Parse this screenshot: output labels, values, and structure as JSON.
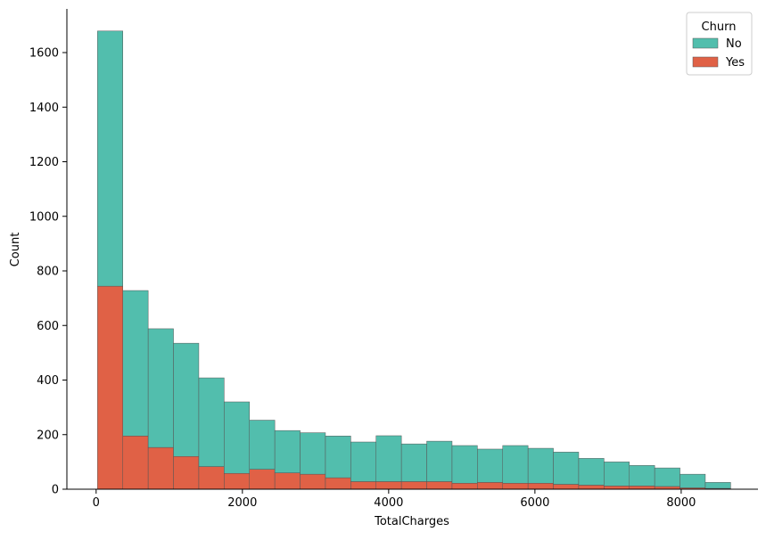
{
  "chart_data": {
    "type": "bar",
    "subtype": "stacked-histogram",
    "title": "",
    "xlabel": "TotalCharges",
    "ylabel": "Count",
    "xlim": [
      -400,
      9050
    ],
    "ylim": [
      0,
      1760
    ],
    "xticks": [
      0,
      2000,
      4000,
      6000,
      8000
    ],
    "yticks": [
      0,
      200,
      400,
      600,
      800,
      1000,
      1200,
      1400,
      1600,
      1800
    ],
    "grid": false,
    "legend": {
      "title": "Churn",
      "placement": "top-right"
    },
    "bin_start": 18.8,
    "bin_width": 346.3,
    "series": [
      {
        "name": "No",
        "color": "#52bead",
        "values": [
          935,
          533,
          435,
          415,
          325,
          262,
          180,
          155,
          152,
          153,
          145,
          168,
          138,
          148,
          138,
          122,
          138,
          128,
          118,
          98,
          88,
          75,
          68,
          50,
          22
        ]
      },
      {
        "name": "Yes",
        "color": "#e06146",
        "values": [
          744,
          195,
          153,
          120,
          83,
          58,
          73,
          60,
          55,
          42,
          28,
          28,
          28,
          28,
          22,
          25,
          22,
          22,
          18,
          15,
          12,
          12,
          10,
          5,
          3
        ]
      }
    ]
  }
}
